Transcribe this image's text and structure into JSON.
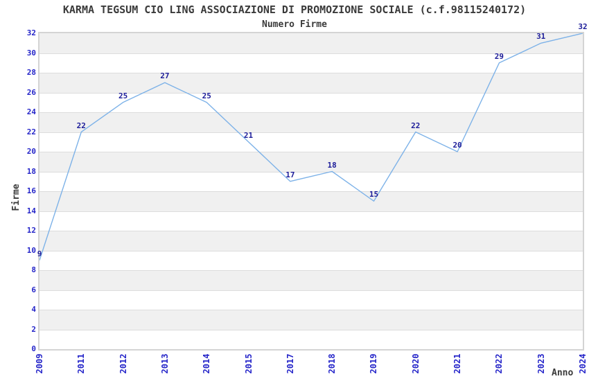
{
  "chart_data": {
    "type": "line",
    "title": "KARMA TEGSUM CIO LING ASSOCIAZIONE DI PROMOZIONE SOCIALE (c.f.98115240172)",
    "subtitle": "Numero Firme",
    "xlabel": "Anno",
    "ylabel": "Firme",
    "categories": [
      "2009",
      "2011",
      "2012",
      "2013",
      "2014",
      "2015",
      "2017",
      "2018",
      "2019",
      "2020",
      "2021",
      "2022",
      "2023",
      "2024"
    ],
    "values": [
      9,
      22,
      25,
      27,
      25,
      21,
      17,
      18,
      15,
      22,
      20,
      29,
      31,
      32
    ],
    "yticks": [
      0,
      2,
      4,
      6,
      8,
      10,
      12,
      14,
      16,
      18,
      20,
      22,
      24,
      26,
      28,
      30,
      32
    ],
    "ylim": [
      0,
      32
    ],
    "ytick_step": 2,
    "grid": "horizontal-bands-alternating",
    "legend": "none",
    "point_markers": false,
    "data_labels_shown": true,
    "colors": {
      "line": "#7db2e8",
      "point_label": "#1c1c99",
      "tick_label": "#2525c9",
      "band_gray": "#f0f0f0",
      "band_white": "#ffffff",
      "plot_border": "#d4d4d4",
      "gridline": "#dcdcdc",
      "title_text": "#3a3a3a"
    }
  }
}
